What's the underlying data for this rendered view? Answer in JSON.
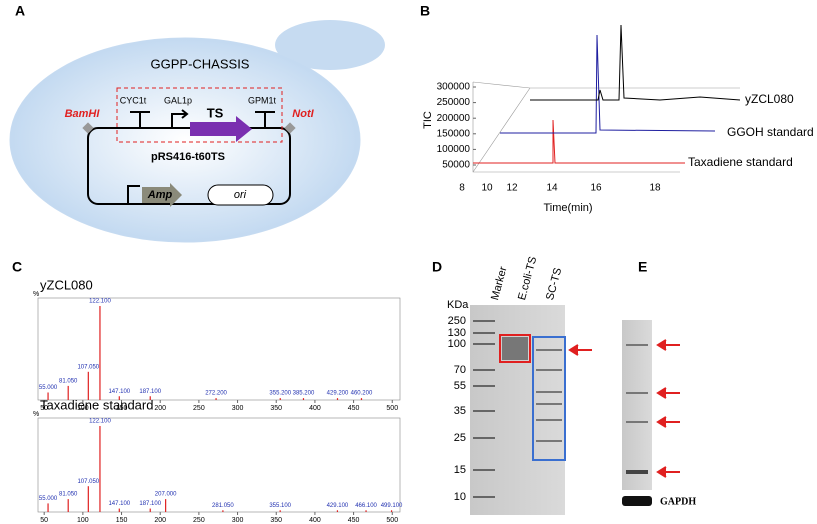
{
  "panels": {
    "A": {
      "label": "A",
      "chassis": "GGPP-CHASSIS",
      "bamhi": "BamHI",
      "noti": "NotI",
      "cyc1t": "CYC1t",
      "gal1p": "GAL1p",
      "ts": "TS",
      "gpm1t": "GPM1t",
      "plasmid": "pRS416-t60TS",
      "amp": "Amp",
      "ori": "ori"
    },
    "B": {
      "label": "B",
      "y_label": "TIC",
      "x_label": "Time(min)",
      "yticks": [
        300000,
        250000,
        200000,
        150000,
        100000,
        50000
      ],
      "xticks": [
        8,
        10,
        12,
        14,
        16,
        18
      ],
      "traces": [
        {
          "name": "yZCL080",
          "color": "#000000"
        },
        {
          "name": "GGOH standard",
          "color": "#1f1fa0"
        },
        {
          "name": "Taxadiene standard",
          "color": "#e02020"
        }
      ]
    },
    "C": {
      "label": "C",
      "y_unit": "%",
      "xlim": [
        42,
        510
      ],
      "xticks": [
        50,
        100,
        150,
        200,
        250,
        300,
        350,
        400,
        450,
        500
      ],
      "spectra": [
        {
          "title": "yZCL080",
          "mz": [
            55,
            81.05,
            107.05,
            122.1,
            147.1,
            187.1,
            272.2,
            355.2,
            385.2,
            429.2,
            460.2
          ],
          "peak_labels": [
            "55.000",
            "81.050",
            "107.050",
            "122.100",
            "147.100",
            "187.100",
            "272.200",
            "355.200",
            "385.200",
            "429.200",
            "460.200"
          ],
          "intensity": [
            8,
            15,
            30,
            100,
            4,
            4,
            2,
            2,
            2,
            2,
            2
          ]
        },
        {
          "title": "Taxadiene standard",
          "mz": [
            55,
            81.05,
            107.05,
            122.1,
            147.1,
            187.1,
            207,
            281.05,
            355.1,
            429.1,
            466.1,
            499.1
          ],
          "peak_labels": [
            "55.000",
            "81.050",
            "107.050",
            "122.100",
            "147.100",
            "187.100",
            "207.000",
            "281.050",
            "355.100",
            "429.100",
            "466.100",
            "499.100"
          ],
          "intensity": [
            10,
            15,
            30,
            100,
            4,
            4,
            15,
            2,
            2,
            2,
            2,
            2
          ]
        }
      ]
    },
    "D": {
      "label": "D",
      "kda": "KDa",
      "lanes": [
        "Marker",
        "E.coli-TS",
        "SC-TS"
      ],
      "markers": [
        "250",
        "130",
        "100",
        "70",
        "55",
        "35",
        "25",
        "15",
        "10"
      ]
    },
    "E": {
      "label": "E",
      "gapdh": "GAPDH"
    }
  }
}
